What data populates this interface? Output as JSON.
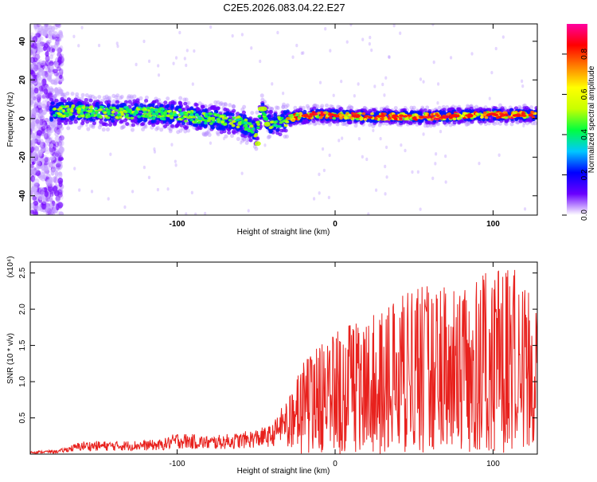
{
  "chart_data": [
    {
      "type": "heatmap",
      "title": "C2E5.2026.083.04.22.E27",
      "xlabel": "Height of straight line (km)",
      "ylabel": "Frequency (Hz)",
      "xlim": [
        -193,
        128
      ],
      "ylim": [
        -50,
        49
      ],
      "xticks": [
        -100,
        0,
        100
      ],
      "xtick_labels": [
        "-100",
        "0",
        "100"
      ],
      "yticks": [
        -40,
        -20,
        0,
        20,
        40
      ],
      "ytick_labels": [
        "-40",
        "-20",
        "0",
        "20",
        "40"
      ],
      "colorbar": {
        "label": "Normalized spectral amplitude",
        "range": [
          0,
          0.95
        ],
        "ticks": [
          0,
          0.2,
          0.4,
          0.6,
          0.8
        ],
        "tick_labels": [
          "0.0",
          "0.2",
          "0.4",
          "0.6",
          "0.8"
        ],
        "colors": [
          "#ffffff",
          "#6a00ff",
          "#0000ff",
          "#00c8ff",
          "#00ff40",
          "#c8ff00",
          "#ffff00",
          "#ff8000",
          "#ff0000",
          "#ff00a0"
        ]
      },
      "center_line": [
        [
          -190,
          3
        ],
        [
          -170,
          4
        ],
        [
          -140,
          3
        ],
        [
          -120,
          3
        ],
        [
          -100,
          2
        ],
        [
          -80,
          0
        ],
        [
          -60,
          -2
        ],
        [
          -55,
          -4
        ],
        [
          -50,
          -7
        ],
        [
          -46,
          5
        ],
        [
          -42,
          -3
        ],
        [
          -35,
          -2
        ],
        [
          -25,
          1
        ],
        [
          -10,
          2
        ],
        [
          20,
          1
        ],
        [
          60,
          1
        ],
        [
          100,
          2
        ],
        [
          128,
          2
        ]
      ]
    },
    {
      "type": "line",
      "xlabel": "Height of straight line (km)",
      "ylabel": "SNR (10 * v/v)",
      "scale_label": "(x10⁴)",
      "xlim": [
        -193,
        128
      ],
      "ylim": [
        0,
        2.65
      ],
      "xticks": [
        -100,
        0,
        100
      ],
      "xtick_labels": [
        "-100",
        "0",
        "100"
      ],
      "yticks": [
        0.5,
        1.0,
        1.5,
        2.0,
        2.5
      ],
      "ytick_labels": [
        "0.5",
        "1.0",
        "1.5",
        "2.0",
        "2.5"
      ],
      "series": [
        {
          "name": "SNR",
          "color": "#e8211d",
          "envelope": [
            [
              -193,
              0.04
            ],
            [
              -175,
              0.06
            ],
            [
              -160,
              0.18
            ],
            [
              -140,
              0.18
            ],
            [
              -110,
              0.2
            ],
            [
              -100,
              0.3
            ],
            [
              -80,
              0.25
            ],
            [
              -60,
              0.3
            ],
            [
              -40,
              0.4
            ],
            [
              -30,
              0.8
            ],
            [
              -20,
              1.3
            ],
            [
              -10,
              1.5
            ],
            [
              0,
              1.7
            ],
            [
              10,
              1.8
            ],
            [
              20,
              1.9
            ],
            [
              40,
              2.2
            ],
            [
              60,
              2.35
            ],
            [
              80,
              2.35
            ],
            [
              100,
              2.55
            ],
            [
              110,
              2.65
            ],
            [
              128,
              2.2
            ]
          ]
        }
      ]
    }
  ]
}
